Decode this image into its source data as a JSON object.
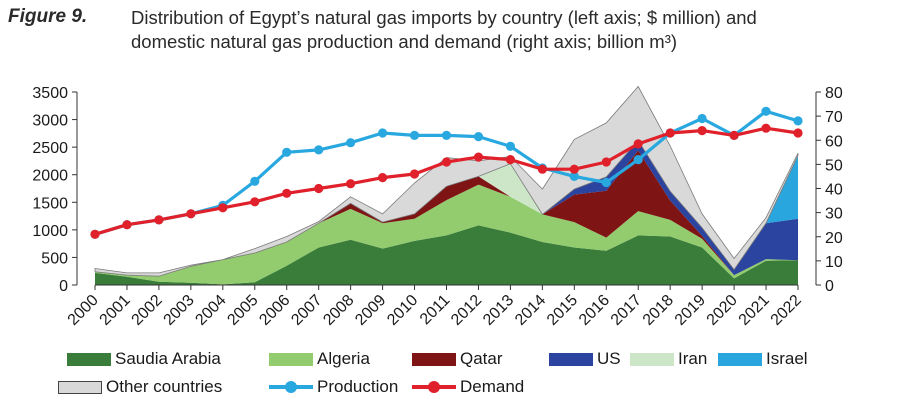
{
  "figure": {
    "label": "Figure 9.",
    "title_line1": "Distribution of Egypt’s natural gas imports by country (left axis; $ million) and",
    "title_line2": "domestic natural gas production and demand (right axis; billion m³)"
  },
  "chart_data": {
    "type": "area",
    "x": [
      "2000",
      "2001",
      "2002",
      "2003",
      "2004",
      "2005",
      "2006",
      "2007",
      "2008",
      "2009",
      "2010",
      "2011",
      "2012",
      "2013",
      "2014",
      "2015",
      "2016",
      "2017",
      "2018",
      "2019",
      "2020",
      "2021",
      "2022"
    ],
    "ylim_left": [
      0,
      3500
    ],
    "yticks_left": [
      0,
      500,
      1000,
      1500,
      2000,
      2500,
      3000,
      3500
    ],
    "ylim_right": [
      0,
      80
    ],
    "yticks_right": [
      0,
      10,
      20,
      30,
      40,
      50,
      60,
      70,
      80
    ],
    "stack_series": [
      {
        "name": "Saudia Arabia",
        "color": "#3a7d3a",
        "values": [
          220,
          150,
          60,
          40,
          10,
          50,
          350,
          680,
          820,
          660,
          800,
          900,
          1080,
          950,
          780,
          680,
          620,
          900,
          880,
          680,
          120,
          440,
          450
        ]
      },
      {
        "name": "Algeria",
        "color": "#92cc6e",
        "values": [
          20,
          30,
          100,
          300,
          450,
          530,
          430,
          440,
          560,
          460,
          400,
          640,
          740,
          650,
          500,
          460,
          240,
          440,
          300,
          160,
          60,
          30,
          0
        ]
      },
      {
        "name": "Qatar",
        "color": "#7f1414",
        "values": [
          0,
          0,
          0,
          0,
          0,
          0,
          0,
          0,
          100,
          20,
          90,
          250,
          150,
          0,
          0,
          500,
          850,
          1100,
          350,
          50,
          0,
          0,
          0
        ]
      },
      {
        "name": "US",
        "color": "#2b44a0",
        "values": [
          0,
          0,
          0,
          0,
          0,
          0,
          0,
          0,
          0,
          0,
          0,
          0,
          0,
          0,
          0,
          100,
          250,
          180,
          170,
          150,
          100,
          650,
          750
        ]
      },
      {
        "name": "Iran",
        "color": "#cde6c8",
        "values": [
          0,
          0,
          0,
          0,
          0,
          0,
          0,
          0,
          0,
          0,
          0,
          0,
          0,
          600,
          0,
          0,
          0,
          0,
          0,
          0,
          0,
          0,
          0
        ]
      },
      {
        "name": "Israel",
        "color": "#2aa6df",
        "values": [
          0,
          0,
          0,
          0,
          0,
          0,
          0,
          0,
          0,
          0,
          0,
          0,
          0,
          0,
          0,
          0,
          0,
          0,
          0,
          0,
          0,
          0,
          1150
        ]
      },
      {
        "name": "Other countries",
        "color": "#d9d9d9",
        "values": [
          60,
          40,
          60,
          20,
          0,
          80,
          100,
          30,
          120,
          150,
          560,
          520,
          280,
          130,
          460,
          900,
          980,
          980,
          820,
          250,
          200,
          100,
          40
        ]
      }
    ],
    "line_series": [
      {
        "name": "Production",
        "color": "#29a8e0",
        "values": [
          21,
          25,
          27,
          29.5,
          33,
          43,
          55,
          56,
          59,
          63,
          62,
          62,
          61.5,
          57.5,
          48.5,
          45,
          42.5,
          52,
          63,
          69,
          62,
          72,
          68
        ]
      },
      {
        "name": "Demand",
        "color": "#e0202a",
        "values": [
          21,
          25,
          27,
          29.5,
          32,
          34.5,
          38,
          40,
          42,
          44.5,
          46,
          51,
          53,
          52,
          48,
          48,
          51,
          58.5,
          63,
          64,
          62,
          65,
          63
        ]
      }
    ],
    "legend_placement": "bottom",
    "grid": false
  },
  "legend": {
    "items": [
      {
        "label": "Saudia Arabia",
        "kind": "swatch",
        "color": "#3a7d3a"
      },
      {
        "label": "Algeria",
        "kind": "swatch",
        "color": "#92cc6e"
      },
      {
        "label": "Qatar",
        "kind": "swatch",
        "color": "#7f1414"
      },
      {
        "label": "US",
        "kind": "swatch",
        "color": "#2b44a0"
      },
      {
        "label": "Iran",
        "kind": "swatch",
        "color": "#cde6c8"
      },
      {
        "label": "Israel",
        "kind": "swatch",
        "color": "#2aa6df"
      },
      {
        "label": "Other countries",
        "kind": "swatch",
        "color": "#d9d9d9"
      },
      {
        "label": "Production",
        "kind": "line",
        "color": "#29a8e0"
      },
      {
        "label": "Demand",
        "kind": "line",
        "color": "#e0202a"
      }
    ]
  }
}
